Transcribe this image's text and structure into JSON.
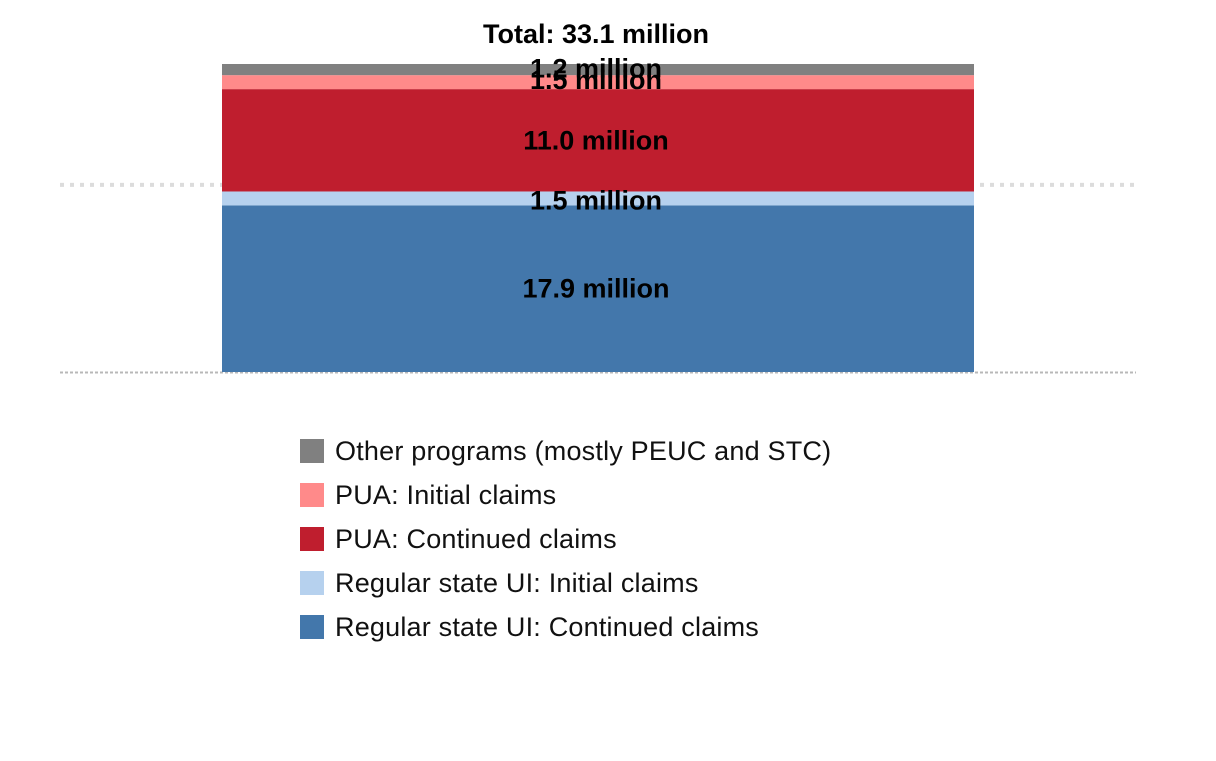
{
  "chart_data": {
    "type": "bar",
    "stacked": true,
    "categories": [
      ""
    ],
    "total_label": "Total: 33.1 million",
    "total_value": 33.1,
    "unit": "million",
    "series": [
      {
        "name": "Regular state UI: Continued claims",
        "values": [
          17.9
        ],
        "label": "17.9 million",
        "color": "#4377ab"
      },
      {
        "name": "Regular state UI: Initial claims",
        "values": [
          1.5
        ],
        "label": "1.5 million",
        "color": "#b6d1ee"
      },
      {
        "name": "PUA: Continued claims",
        "values": [
          11.0
        ],
        "label": "11.0 million",
        "color": "#bf1e2e"
      },
      {
        "name": "PUA: Initial claims",
        "values": [
          1.5
        ],
        "label": "1.5 million",
        "color": "#ff8a8a"
      },
      {
        "name": "Other programs (mostly PEUC and STC)",
        "values": [
          1.2
        ],
        "label": "1.2 million",
        "color": "#808080"
      }
    ],
    "ylim": [
      0,
      33.1
    ],
    "gridlines": [
      0,
      20
    ],
    "legend_position": "bottom",
    "legend_order": [
      4,
      3,
      2,
      1,
      0
    ]
  }
}
